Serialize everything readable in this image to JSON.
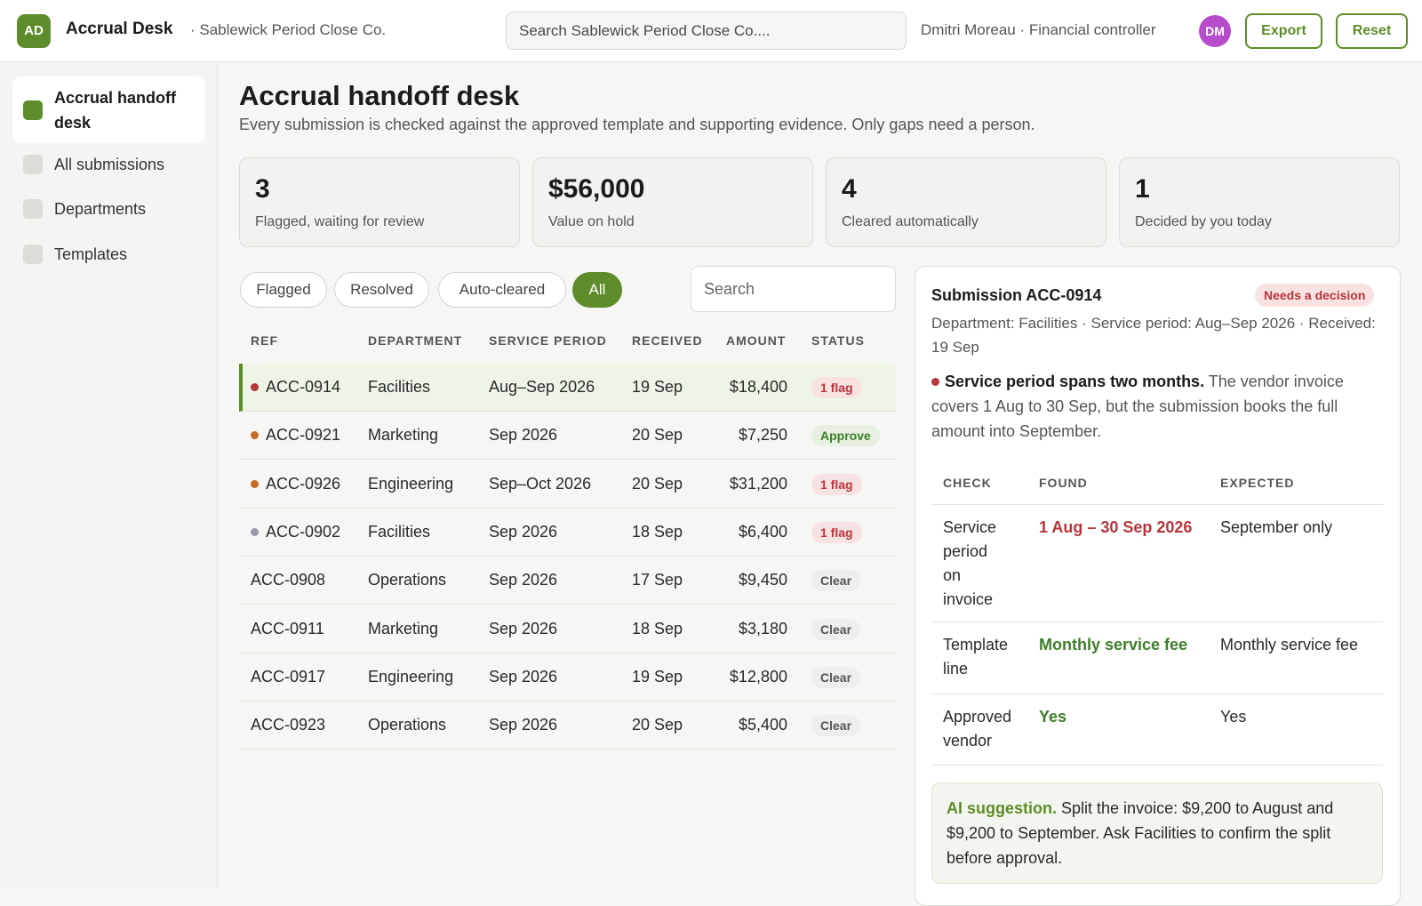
{
  "header": {
    "logo": "AD",
    "app_name": "Accrual Desk",
    "company": "· Sablewick Period Close Co.",
    "search_placeholder": "Search Sablewick Period Close Co....",
    "user": "Dmitri Moreau · Financial controller",
    "avatar": "DM",
    "export_label": "Export",
    "reset_label": "Reset"
  },
  "sidebar": {
    "items": [
      {
        "label": "Accrual handoff desk",
        "active": true
      },
      {
        "label": "All submissions",
        "active": false
      },
      {
        "label": "Departments",
        "active": false
      },
      {
        "label": "Templates",
        "active": false
      }
    ]
  },
  "page": {
    "title": "Accrual handoff desk",
    "subtitle": "Every submission is checked against the approved template and supporting evidence. Only gaps need a person."
  },
  "stats": [
    {
      "value": "3",
      "label": "Flagged, waiting for review"
    },
    {
      "value": "$56,000",
      "label": "Value on hold"
    },
    {
      "value": "4",
      "label": "Cleared automatically"
    },
    {
      "value": "1",
      "label": "Decided by you today"
    }
  ],
  "filters": {
    "tabs": [
      "Flagged",
      "Resolved",
      "Auto-cleared",
      "All"
    ],
    "active": "All",
    "search_placeholder": "Search"
  },
  "table": {
    "columns": [
      "REF",
      "DEPARTMENT",
      "SERVICE PERIOD",
      "RECEIVED",
      "AMOUNT",
      "STATUS"
    ],
    "rows": [
      {
        "ref": "ACC-0914",
        "dept": "Facilities",
        "period": "Aug–Sep 2026",
        "received": "19 Sep",
        "amount": "$18,400",
        "status": "1 flag",
        "status_type": "flag",
        "dot": "#b8353a"
      },
      {
        "ref": "ACC-0921",
        "dept": "Marketing",
        "period": "Sep 2026",
        "received": "20 Sep",
        "amount": "$7,250",
        "status": "Approve",
        "status_type": "approve",
        "dot": "#c76a26"
      },
      {
        "ref": "ACC-0926",
        "dept": "Engineering",
        "period": "Sep–Oct 2026",
        "received": "20 Sep",
        "amount": "$31,200",
        "status": "1 flag",
        "status_type": "flag",
        "dot": "#c76a26"
      },
      {
        "ref": "ACC-0902",
        "dept": "Facilities",
        "period": "Sep 2026",
        "received": "18 Sep",
        "amount": "$6,400",
        "status": "1 flag",
        "status_type": "flag",
        "dot": "#9a98a8"
      },
      {
        "ref": "ACC-0908",
        "dept": "Operations",
        "period": "Sep 2026",
        "received": "17 Sep",
        "amount": "$9,450",
        "status": "Clear",
        "status_type": "clear",
        "dot": ""
      },
      {
        "ref": "ACC-0911",
        "dept": "Marketing",
        "period": "Sep 2026",
        "received": "18 Sep",
        "amount": "$3,180",
        "status": "Clear",
        "status_type": "clear",
        "dot": ""
      },
      {
        "ref": "ACC-0917",
        "dept": "Engineering",
        "period": "Sep 2026",
        "received": "19 Sep",
        "amount": "$12,800",
        "status": "Clear",
        "status_type": "clear",
        "dot": ""
      },
      {
        "ref": "ACC-0923",
        "dept": "Operations",
        "period": "Sep 2026",
        "received": "20 Sep",
        "amount": "$5,400",
        "status": "Clear",
        "status_type": "clear",
        "dot": ""
      }
    ]
  },
  "detail": {
    "title": "Submission ACC-0914",
    "badge": "Needs a decision",
    "meta": "Department: Facilities · Service period: Aug–Sep 2026 · Received: 19 Sep",
    "issue_title": "Service period spans two months.",
    "issue_text": " The vendor invoice covers 1 Aug to 30 Sep, but the submission books the full amount into September.",
    "check_columns": [
      "CHECK",
      "FOUND",
      "EXPECTED"
    ],
    "checks": [
      {
        "check": "Service period on invoice",
        "found": "1 Aug – 30 Sep 2026",
        "found_state": "red",
        "expected": "September only"
      },
      {
        "check": "Template line",
        "found": "Monthly service fee",
        "found_state": "green",
        "expected": "Monthly service fee"
      },
      {
        "check": "Approved vendor",
        "found": "Yes",
        "found_state": "green",
        "expected": "Yes"
      }
    ],
    "ai_label": "AI suggestion.",
    "ai_text": " Split the invoice: $9,200 to August and $9,200 to September. Ask Facilities to confirm the split before approval."
  }
}
